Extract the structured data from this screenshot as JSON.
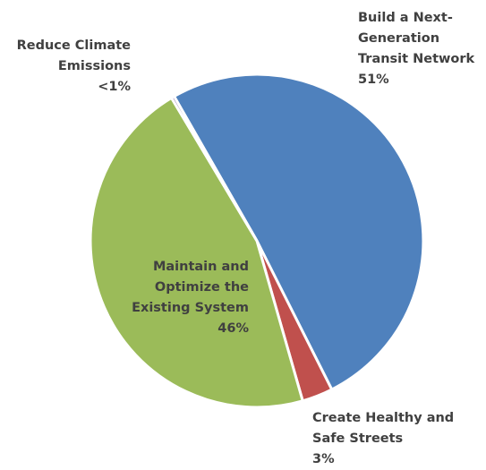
{
  "chart_data": {
    "type": "pie",
    "title": "",
    "start_angle_deg": 330.2,
    "direction": "clockwise",
    "slices": [
      {
        "name": "Build a Next-Generation Transit Network",
        "value": 51,
        "value_label": "51%",
        "color": "#4F81BD",
        "label_lines": [
          "Build a Next-",
          "Generation",
          "Transit Network"
        ]
      },
      {
        "name": "Create Healthy and Safe Streets",
        "value": 3,
        "value_label": "3%",
        "color": "#C0504D",
        "label_lines": [
          "Create Healthy and",
          "Safe Streets"
        ]
      },
      {
        "name": "Maintain and Optimize the Existing System",
        "value": 46,
        "value_label": "46%",
        "color": "#9BBB59",
        "label_lines": [
          "Maintain and",
          "Optimize the",
          "Existing System"
        ]
      },
      {
        "name": "Reduce Climate Emissions",
        "value": 0.3,
        "value_label": "<1%",
        "color": "#8064A2",
        "label_lines": [
          "Reduce Climate",
          "Emissions"
        ]
      }
    ]
  }
}
